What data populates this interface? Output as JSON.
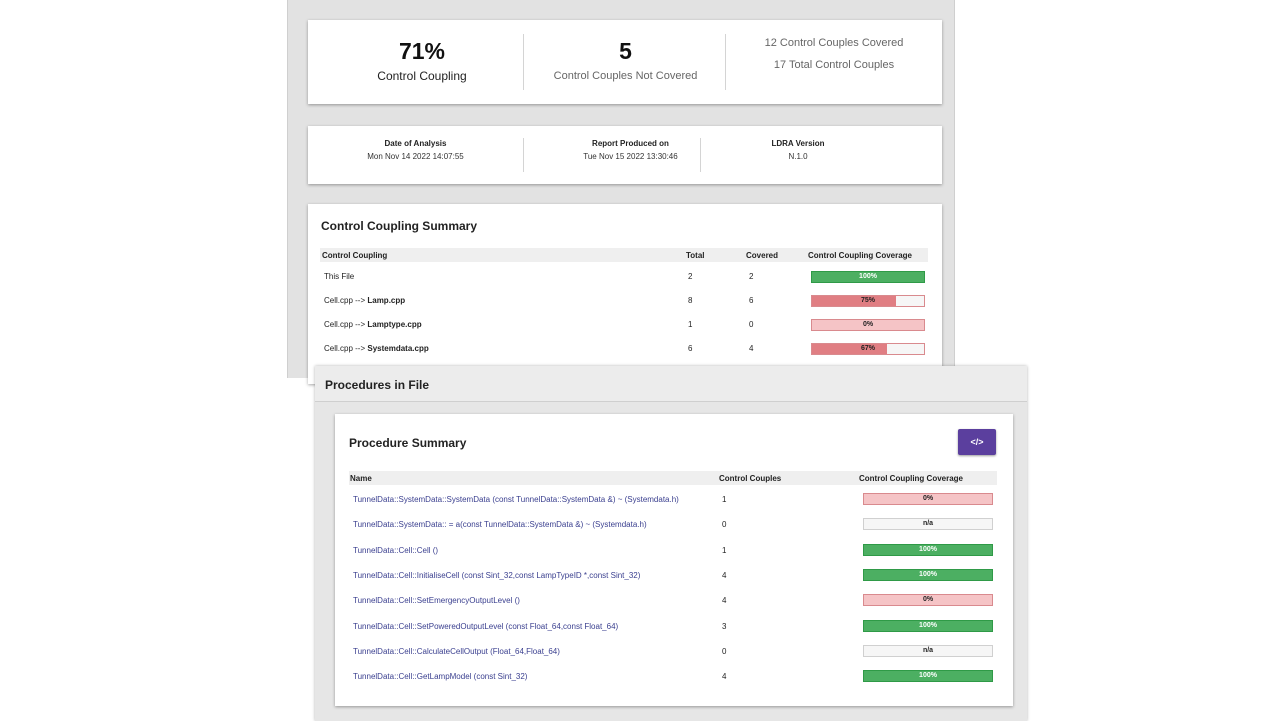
{
  "summary": {
    "percent": "71%",
    "percent_label": "Control Coupling",
    "not_covered_count": "5",
    "not_covered_label": "Control Couples Not Covered",
    "covered_text": "12 Control Couples Covered",
    "total_text": "17 Total Control Couples"
  },
  "meta": {
    "date_label": "Date of Analysis",
    "date_value": "Mon Nov 14 2022 14:07:55",
    "report_label": "Report Produced on",
    "report_value": "Tue Nov 15 2022 13:30:46",
    "version_label": "LDRA Version",
    "version_value": "N.1.0"
  },
  "cc_summary": {
    "title": "Control Coupling Summary",
    "columns": [
      "Control Coupling",
      "Total",
      "Covered",
      "Control Coupling Coverage"
    ],
    "rows": [
      {
        "prefix": "This File",
        "target": "",
        "total": "2",
        "covered": "2",
        "coverage_label": "100%",
        "coverage": 1.0
      },
      {
        "prefix": "Cell.cpp --> ",
        "target": "Lamp.cpp",
        "total": "8",
        "covered": "6",
        "coverage_label": "75%",
        "coverage": 0.75
      },
      {
        "prefix": "Cell.cpp --> ",
        "target": "Lamptype.cpp",
        "total": "1",
        "covered": "0",
        "coverage_label": "0%",
        "coverage": 0.0
      },
      {
        "prefix": "Cell.cpp --> ",
        "target": "Systemdata.cpp",
        "total": "6",
        "covered": "4",
        "coverage_label": "67%",
        "coverage": 0.67
      }
    ]
  },
  "procedures": {
    "panel_title": "Procedures in File",
    "title": "Procedure Summary",
    "code_button": "</>",
    "columns": [
      "Name",
      "Control Couples",
      "Control Coupling Coverage"
    ],
    "rows": [
      {
        "name": "TunnelData::SystemData::SystemData (const TunnelData::SystemData &) ~ (Systemdata.h)",
        "couples": "1",
        "coverage_label": "0%",
        "coverage": 0.0
      },
      {
        "name": "TunnelData::SystemData:: = a(const TunnelData::SystemData &) ~ (Systemdata.h)",
        "couples": "0",
        "coverage_label": "n/a",
        "coverage": null
      },
      {
        "name": "TunnelData::Cell::Cell ()",
        "couples": "1",
        "coverage_label": "100%",
        "coverage": 1.0
      },
      {
        "name": "TunnelData::Cell::InitialiseCell (const Sint_32,const LampTypeID *,const Sint_32)",
        "couples": "4",
        "coverage_label": "100%",
        "coverage": 1.0
      },
      {
        "name": "TunnelData::Cell::SetEmergencyOutputLevel ()",
        "couples": "4",
        "coverage_label": "0%",
        "coverage": 0.0
      },
      {
        "name": "TunnelData::Cell::SetPoweredOutputLevel (const Float_64,const Float_64)",
        "couples": "3",
        "coverage_label": "100%",
        "coverage": 1.0
      },
      {
        "name": "TunnelData::Cell::CalculateCellOutput (Float_64,Float_64)",
        "couples": "0",
        "coverage_label": "n/a",
        "coverage": null
      },
      {
        "name": "TunnelData::Cell::GetLampModel (const Sint_32)",
        "couples": "4",
        "coverage_label": "100%",
        "coverage": 1.0
      }
    ]
  },
  "colors": {
    "full": "#4caf62",
    "partial": "#e07e83",
    "zero": "#f5c4c6",
    "button": "#5b3f9e"
  }
}
